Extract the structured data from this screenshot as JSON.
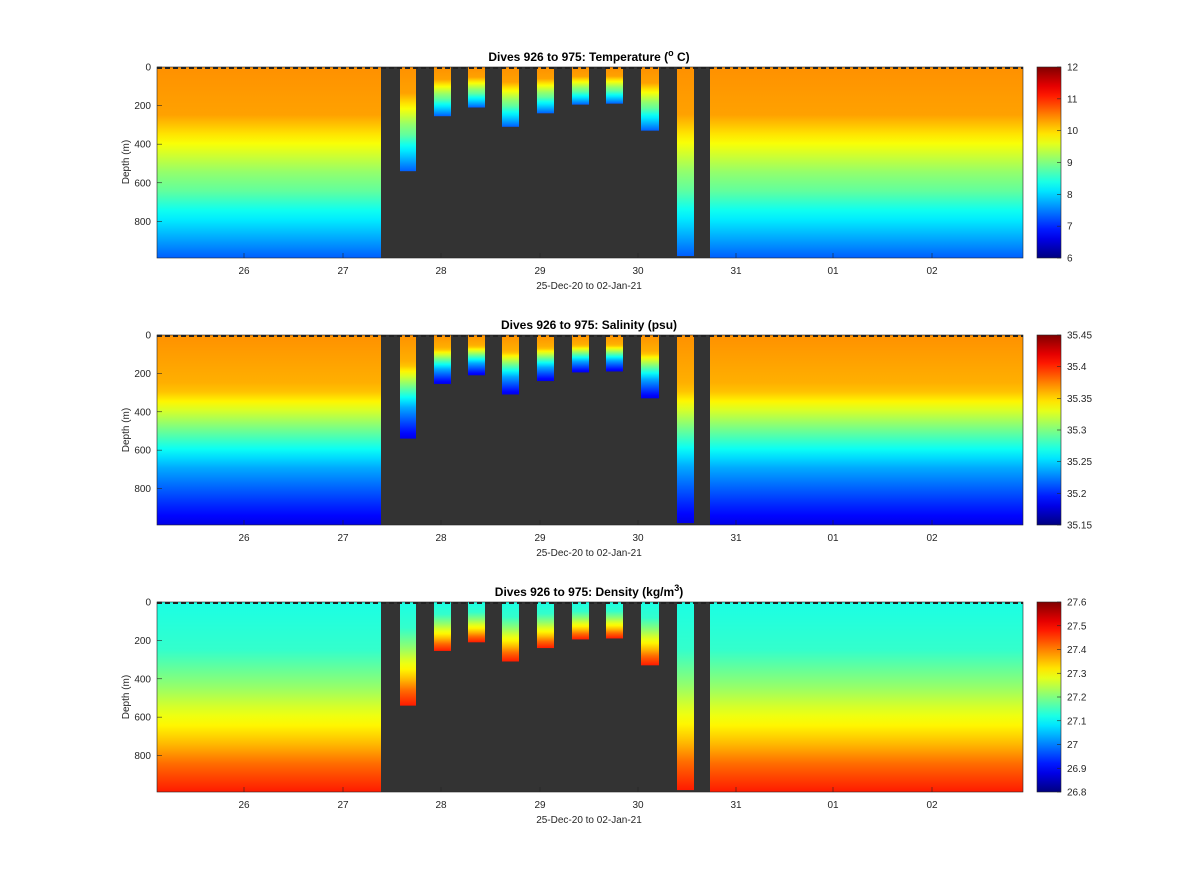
{
  "chart_data": [
    {
      "type": "heatmap",
      "title_main": "Dives 926 to 975: Temperature (",
      "title_sup": "o",
      "title_tail": " C)",
      "xlabel": "25-Dec-20 to 02-Jan-21",
      "ylabel": "Depth (m)",
      "x_tick_labels": [
        "26",
        "27",
        "28",
        "29",
        "30",
        "31",
        "01",
        "02"
      ],
      "y_ticks": [
        0,
        200,
        400,
        600,
        800
      ],
      "ylim": [
        0,
        990
      ],
      "y_reversed": true,
      "colorbar_ticks": [
        6,
        7,
        8,
        9,
        10,
        11,
        12
      ],
      "clim": [
        6,
        12
      ],
      "profile": [
        [
          0,
          10.4
        ],
        [
          250,
          10.3
        ],
        [
          350,
          9.9
        ],
        [
          450,
          9.5
        ],
        [
          550,
          9.1
        ],
        [
          650,
          8.8
        ],
        [
          750,
          8.3
        ],
        [
          850,
          7.9
        ],
        [
          990,
          7.3
        ]
      ],
      "colormap": "jet",
      "missing_color": "#333333"
    },
    {
      "type": "heatmap",
      "title_main": "Dives 926 to 975: Salinity (psu)",
      "title_sup": "",
      "title_tail": "",
      "xlabel": "25-Dec-20 to 02-Jan-21",
      "ylabel": "Depth (m)",
      "x_tick_labels": [
        "26",
        "27",
        "28",
        "29",
        "30",
        "31",
        "01",
        "02"
      ],
      "y_ticks": [
        0,
        200,
        400,
        600,
        800
      ],
      "ylim": [
        0,
        990
      ],
      "y_reversed": true,
      "colorbar_ticks": [
        35.15,
        35.2,
        35.25,
        35.3,
        35.35,
        35.4,
        35.45
      ],
      "clim": [
        35.15,
        35.45
      ],
      "profile": [
        [
          0,
          35.37
        ],
        [
          280,
          35.36
        ],
        [
          380,
          35.33
        ],
        [
          480,
          35.3
        ],
        [
          580,
          35.27
        ],
        [
          680,
          35.24
        ],
        [
          780,
          35.22
        ],
        [
          880,
          35.2
        ],
        [
          990,
          35.18
        ]
      ],
      "colormap": "jet",
      "missing_color": "#333333"
    },
    {
      "type": "heatmap",
      "title_main": "Dives 926 to 975: Density (kg/m",
      "title_sup": "3",
      "title_tail": ")",
      "xlabel": "25-Dec-20 to 02-Jan-21",
      "ylabel": "Depth (m)",
      "x_tick_labels": [
        "26",
        "27",
        "28",
        "29",
        "30",
        "31",
        "01",
        "02"
      ],
      "y_ticks": [
        0,
        200,
        400,
        600,
        800
      ],
      "ylim": [
        0,
        990
      ],
      "y_reversed": true,
      "colorbar_ticks": [
        26.8,
        26.9,
        27,
        27.1,
        27.2,
        27.3,
        27.4,
        27.5,
        27.6
      ],
      "clim": [
        26.8,
        27.6
      ],
      "profile": [
        [
          0,
          27.12
        ],
        [
          250,
          27.14
        ],
        [
          350,
          27.18
        ],
        [
          450,
          27.22
        ],
        [
          550,
          27.27
        ],
        [
          650,
          27.31
        ],
        [
          750,
          27.36
        ],
        [
          850,
          27.42
        ],
        [
          990,
          27.48
        ]
      ],
      "colormap": "jet",
      "missing_color": "#333333"
    }
  ]
}
